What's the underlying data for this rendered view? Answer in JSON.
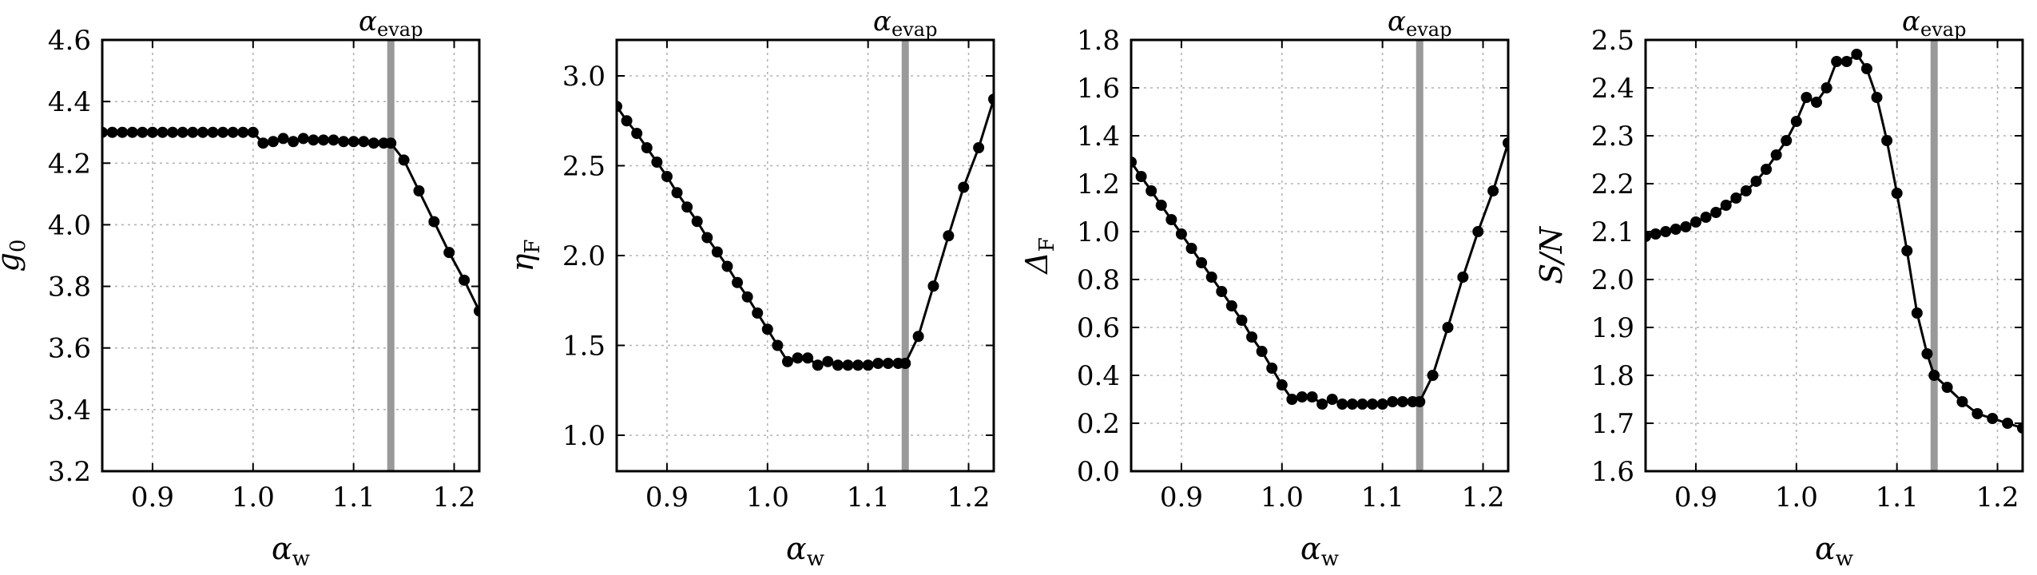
{
  "chart_data": [
    {
      "type": "line",
      "xlabel": "α_w",
      "ylabel": "g_0",
      "xlim": [
        0.85,
        1.225
      ],
      "ylim": [
        3.2,
        4.6
      ],
      "xticks": [
        0.9,
        1.0,
        1.1,
        1.2
      ],
      "yticks": [
        3.2,
        3.4,
        3.6,
        3.8,
        4.0,
        4.2,
        4.4,
        4.6
      ],
      "xtick_labels": [
        "0.9",
        "1.0",
        "1.1",
        "1.2"
      ],
      "ytick_labels": [
        "3.2",
        "3.4",
        "3.6",
        "3.8",
        "4.0",
        "4.2",
        "4.4",
        "4.6"
      ],
      "grid": true,
      "vline": {
        "x": 1.137,
        "label": "α_evap",
        "color": "#999999"
      },
      "series": [
        {
          "x": [
            0.85,
            0.86,
            0.87,
            0.88,
            0.89,
            0.9,
            0.91,
            0.92,
            0.93,
            0.94,
            0.95,
            0.96,
            0.97,
            0.98,
            0.99,
            1.0,
            1.01,
            1.02,
            1.03,
            1.04,
            1.05,
            1.06,
            1.07,
            1.08,
            1.09,
            1.1,
            1.11,
            1.12,
            1.13,
            1.137,
            1.15,
            1.165,
            1.18,
            1.195,
            1.21,
            1.225
          ],
          "y": [
            4.3,
            4.3,
            4.3,
            4.3,
            4.3,
            4.3,
            4.3,
            4.3,
            4.3,
            4.3,
            4.3,
            4.3,
            4.3,
            4.3,
            4.3,
            4.3,
            4.265,
            4.27,
            4.28,
            4.27,
            4.28,
            4.275,
            4.275,
            4.275,
            4.27,
            4.27,
            4.27,
            4.265,
            4.265,
            4.265,
            4.21,
            4.11,
            4.01,
            3.91,
            3.82,
            3.72
          ]
        }
      ]
    },
    {
      "type": "line",
      "xlabel": "α_w",
      "ylabel": "η_F",
      "xlim": [
        0.85,
        1.225
      ],
      "ylim": [
        0.8,
        3.2
      ],
      "xticks": [
        0.9,
        1.0,
        1.1,
        1.2
      ],
      "yticks": [
        1.0,
        1.5,
        2.0,
        2.5,
        3.0
      ],
      "xtick_labels": [
        "0.9",
        "1.0",
        "1.1",
        "1.2"
      ],
      "ytick_labels": [
        "1.0",
        "1.5",
        "2.0",
        "2.5",
        "3.0"
      ],
      "grid": true,
      "vline": {
        "x": 1.137,
        "label": "α_evap",
        "color": "#999999"
      },
      "series": [
        {
          "x": [
            0.85,
            0.86,
            0.87,
            0.88,
            0.89,
            0.9,
            0.91,
            0.92,
            0.93,
            0.94,
            0.95,
            0.96,
            0.97,
            0.98,
            0.99,
            1.0,
            1.01,
            1.02,
            1.03,
            1.04,
            1.05,
            1.06,
            1.07,
            1.08,
            1.09,
            1.1,
            1.11,
            1.12,
            1.13,
            1.137,
            1.15,
            1.165,
            1.18,
            1.195,
            1.21,
            1.225
          ],
          "y": [
            2.83,
            2.75,
            2.68,
            2.6,
            2.52,
            2.44,
            2.35,
            2.27,
            2.19,
            2.1,
            2.02,
            1.94,
            1.85,
            1.77,
            1.68,
            1.59,
            1.5,
            1.41,
            1.43,
            1.43,
            1.39,
            1.41,
            1.39,
            1.39,
            1.39,
            1.39,
            1.4,
            1.4,
            1.4,
            1.4,
            1.55,
            1.83,
            2.11,
            2.38,
            2.6,
            2.87
          ]
        }
      ]
    },
    {
      "type": "line",
      "xlabel": "α_w",
      "ylabel": "Δ_F",
      "xlim": [
        0.85,
        1.225
      ],
      "ylim": [
        0.0,
        1.8
      ],
      "xticks": [
        0.9,
        1.0,
        1.1,
        1.2
      ],
      "yticks": [
        0.0,
        0.2,
        0.4,
        0.6,
        0.8,
        1.0,
        1.2,
        1.4,
        1.6,
        1.8
      ],
      "xtick_labels": [
        "0.9",
        "1.0",
        "1.1",
        "1.2"
      ],
      "ytick_labels": [
        "0.0",
        "0.2",
        "0.4",
        "0.6",
        "0.8",
        "1.0",
        "1.2",
        "1.4",
        "1.6",
        "1.8"
      ],
      "grid": true,
      "vline": {
        "x": 1.137,
        "label": "α_evap",
        "color": "#999999"
      },
      "series": [
        {
          "x": [
            0.85,
            0.86,
            0.87,
            0.88,
            0.89,
            0.9,
            0.91,
            0.92,
            0.93,
            0.94,
            0.95,
            0.96,
            0.97,
            0.98,
            0.99,
            1.0,
            1.01,
            1.02,
            1.03,
            1.04,
            1.05,
            1.06,
            1.07,
            1.08,
            1.09,
            1.1,
            1.11,
            1.12,
            1.13,
            1.137,
            1.15,
            1.165,
            1.18,
            1.195,
            1.21,
            1.225
          ],
          "y": [
            1.29,
            1.23,
            1.17,
            1.11,
            1.05,
            0.99,
            0.93,
            0.87,
            0.81,
            0.75,
            0.69,
            0.63,
            0.56,
            0.5,
            0.43,
            0.36,
            0.3,
            0.31,
            0.31,
            0.28,
            0.3,
            0.28,
            0.28,
            0.28,
            0.28,
            0.28,
            0.29,
            0.29,
            0.29,
            0.29,
            0.4,
            0.6,
            0.81,
            1.0,
            1.17,
            1.37
          ]
        }
      ]
    },
    {
      "type": "line",
      "xlabel": "α_w",
      "ylabel": "S/N",
      "xlim": [
        0.85,
        1.225
      ],
      "ylim": [
        1.6,
        2.5
      ],
      "xticks": [
        0.9,
        1.0,
        1.1,
        1.2
      ],
      "yticks": [
        1.6,
        1.7,
        1.8,
        1.9,
        2.0,
        2.1,
        2.2,
        2.3,
        2.4,
        2.5
      ],
      "xtick_labels": [
        "0.9",
        "1.0",
        "1.1",
        "1.2"
      ],
      "ytick_labels": [
        "1.6",
        "1.7",
        "1.8",
        "1.9",
        "2.0",
        "2.1",
        "2.2",
        "2.3",
        "2.4",
        "2.5"
      ],
      "grid": true,
      "vline": {
        "x": 1.137,
        "label": "α_evap",
        "color": "#999999"
      },
      "series": [
        {
          "x": [
            0.85,
            0.86,
            0.87,
            0.88,
            0.89,
            0.9,
            0.91,
            0.92,
            0.93,
            0.94,
            0.95,
            0.96,
            0.97,
            0.98,
            0.99,
            1.0,
            1.01,
            1.02,
            1.03,
            1.04,
            1.05,
            1.06,
            1.07,
            1.08,
            1.09,
            1.1,
            1.11,
            1.12,
            1.13,
            1.137,
            1.15,
            1.165,
            1.18,
            1.195,
            1.21,
            1.225
          ],
          "y": [
            2.09,
            2.095,
            2.1,
            2.105,
            2.11,
            2.12,
            2.13,
            2.14,
            2.155,
            2.17,
            2.185,
            2.205,
            2.23,
            2.26,
            2.29,
            2.33,
            2.38,
            2.37,
            2.4,
            2.455,
            2.455,
            2.47,
            2.44,
            2.38,
            2.29,
            2.18,
            2.06,
            1.93,
            1.845,
            1.8,
            1.775,
            1.745,
            1.72,
            1.71,
            1.7,
            1.69
          ]
        }
      ]
    }
  ]
}
